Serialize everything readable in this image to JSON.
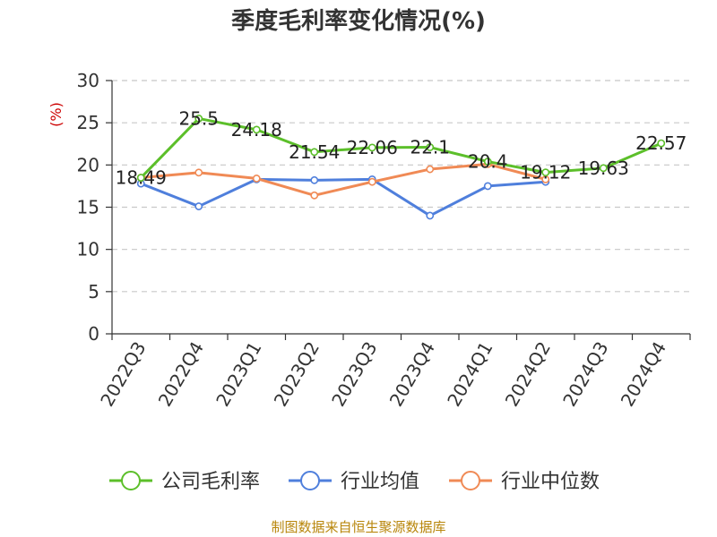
{
  "chart_data": {
    "type": "line",
    "title": "季度毛利率变化情况(%)",
    "ylabel": "(%)",
    "ylim": [
      0,
      30
    ],
    "yticks": [
      0,
      5,
      10,
      15,
      20,
      25,
      30
    ],
    "grid": true,
    "legend_position": "bottom",
    "categories": [
      "2022Q3",
      "2022Q4",
      "2023Q1",
      "2023Q2",
      "2023Q3",
      "2023Q4",
      "2024Q1",
      "2024Q2",
      "2024Q3",
      "2024Q4"
    ],
    "series": [
      {
        "name": "公司毛利率",
        "color": "#5cbf2a",
        "values": [
          18.49,
          25.5,
          24.18,
          21.54,
          22.06,
          22.1,
          20.4,
          19.12,
          19.63,
          22.57
        ],
        "data_labels": [
          "18.49",
          "25.5",
          "24.18",
          "21.54",
          "22.06",
          "22.1",
          "20.4",
          "19.12",
          "19.63",
          "22.57"
        ]
      },
      {
        "name": "行业均值",
        "color": "#4f7fdc",
        "values": [
          17.8,
          15.1,
          18.3,
          18.2,
          18.3,
          14.0,
          17.5,
          18.0,
          null,
          null
        ]
      },
      {
        "name": "行业中位数",
        "color": "#f08a55",
        "values": [
          18.5,
          19.1,
          18.4,
          16.4,
          18.0,
          19.5,
          20.1,
          18.3,
          null,
          null
        ]
      }
    ]
  },
  "source_text": "制图数据来自恒生聚源数据库"
}
